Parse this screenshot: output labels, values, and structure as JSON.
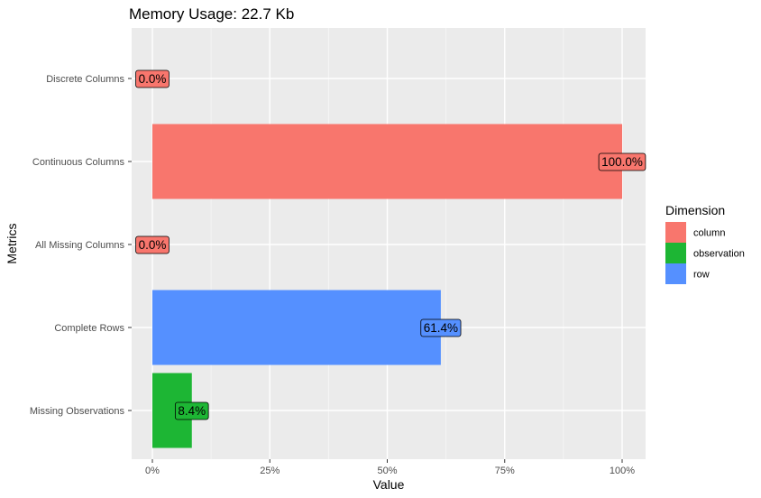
{
  "chart_data": {
    "type": "bar",
    "orientation": "horizontal",
    "title": "Memory Usage: 22.7 Kb",
    "xlabel": "Value",
    "ylabel": "Metrics",
    "xlim": [
      0,
      1
    ],
    "x_ticks": [
      {
        "value": 0,
        "label": "0%"
      },
      {
        "value": 0.25,
        "label": "25%"
      },
      {
        "value": 0.5,
        "label": "50%"
      },
      {
        "value": 0.75,
        "label": "75%"
      },
      {
        "value": 1,
        "label": "100%"
      }
    ],
    "grid": true,
    "legend": {
      "title": "Dimension",
      "placement": "right",
      "entries": [
        {
          "name": "column",
          "color": "#F8766D"
        },
        {
          "name": "observation",
          "color": "#1DB634"
        },
        {
          "name": "row",
          "color": "#5590FF"
        }
      ]
    },
    "bars": [
      {
        "category": "Discrete Columns",
        "value": 0.0,
        "label": "0.0%",
        "dimension": "column",
        "color": "#F8766D"
      },
      {
        "category": "Continuous Columns",
        "value": 1.0,
        "label": "100.0%",
        "dimension": "column",
        "color": "#F8766D"
      },
      {
        "category": "All Missing Columns",
        "value": 0.0,
        "label": "0.0%",
        "dimension": "column",
        "color": "#F8766D"
      },
      {
        "category": "Complete Rows",
        "value": 0.614,
        "label": "61.4%",
        "dimension": "row",
        "color": "#5590FF"
      },
      {
        "category": "Missing Observations",
        "value": 0.084,
        "label": "8.4%",
        "dimension": "observation",
        "color": "#1DB634"
      }
    ]
  }
}
